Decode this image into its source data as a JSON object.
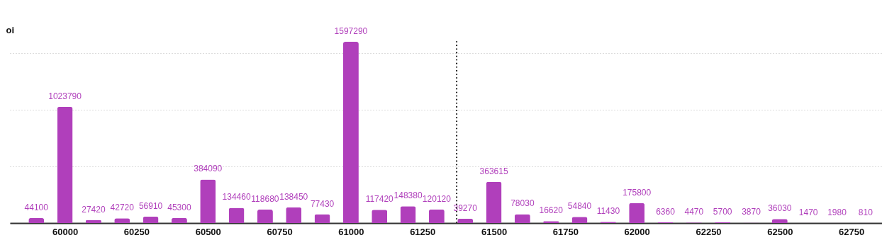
{
  "chart_data": {
    "type": "bar",
    "ylabel": "oi",
    "color": "#b03fbb",
    "x": [
      59900,
      60000,
      60100,
      60200,
      60300,
      60400,
      60500,
      60600,
      60700,
      60800,
      60900,
      61000,
      61100,
      61200,
      61300,
      61400,
      61500,
      61600,
      61700,
      61800,
      61900,
      62000,
      62100,
      62200,
      62300,
      62400,
      62500,
      62600,
      62700,
      62800
    ],
    "values": [
      44100,
      1023790,
      27420,
      42720,
      56910,
      45300,
      384090,
      134460,
      118680,
      138450,
      77430,
      1597290,
      117420,
      148380,
      120120,
      39270,
      363615,
      78030,
      16620,
      54840,
      11430,
      175800,
      6360,
      4470,
      5700,
      3870,
      36030,
      1470,
      1980,
      810
    ],
    "xlim": [
      59820,
      62850
    ],
    "xticks": [
      60000,
      60250,
      60500,
      60750,
      61000,
      61250,
      61500,
      61750,
      62000,
      62250,
      62500,
      62750
    ],
    "yticks": [
      {
        "value": 0,
        "label": null
      },
      {
        "value": 500000,
        "label": null
      },
      {
        "value": 1000000,
        "label": null
      },
      {
        "value": 1500000,
        "label": null
      }
    ],
    "grid": "y",
    "tick_labels": "x",
    "data_labels": true,
    "ref_lines": [
      {
        "axis": "x",
        "value": 61370,
        "line_style": "dotted",
        "color": "#000000"
      }
    ]
  }
}
